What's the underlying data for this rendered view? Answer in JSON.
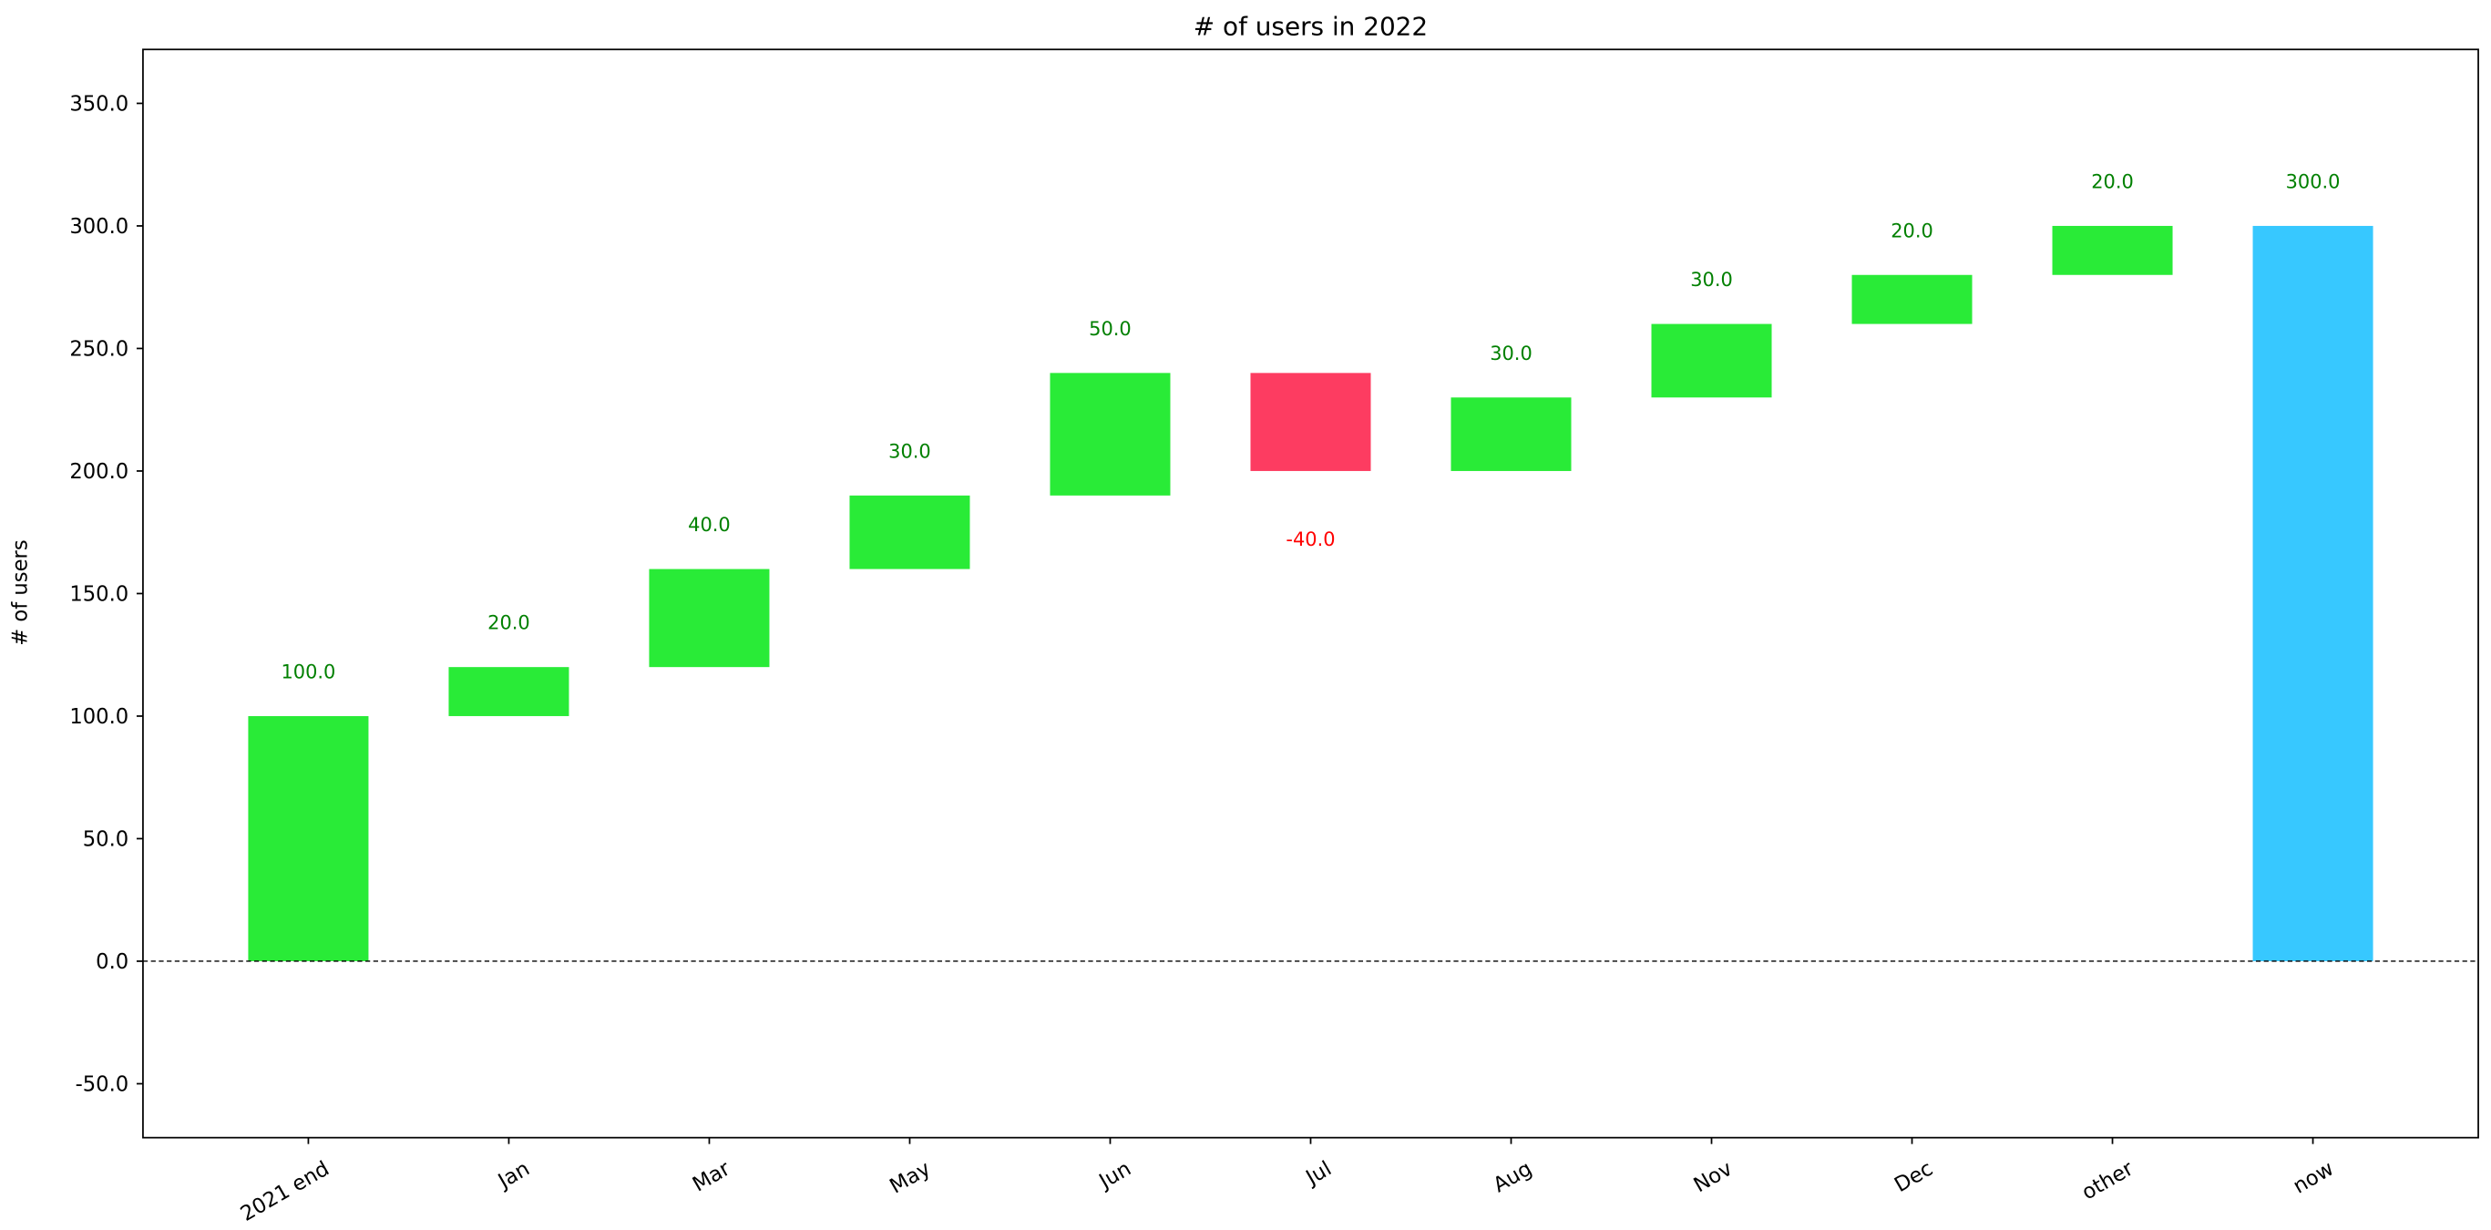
{
  "chart_data": {
    "type": "waterfall",
    "title": "# of users in 2022",
    "xlabel": "",
    "ylabel": "# of users",
    "categories": [
      "2021 end",
      "Jan",
      "Mar",
      "May",
      "Jun",
      "Jul",
      "Aug",
      "Nov",
      "Dec",
      "other",
      "now"
    ],
    "changes": [
      100,
      20,
      40,
      30,
      50,
      -40,
      30,
      30,
      20,
      20,
      300
    ],
    "bar_kind": [
      "delta",
      "delta",
      "delta",
      "delta",
      "delta",
      "delta",
      "delta",
      "delta",
      "delta",
      "delta",
      "total"
    ],
    "data_labels": [
      "100.0",
      "20.0",
      "40.0",
      "30.0",
      "50.0",
      "-40.0",
      "30.0",
      "30.0",
      "20.0",
      "20.0",
      "300.0"
    ],
    "ylim": [
      -72,
      372
    ],
    "yticks": [
      -50,
      0,
      50,
      100,
      150,
      200,
      250,
      300,
      350
    ],
    "ytick_labels": [
      "-50.0",
      "0.0",
      "50.0",
      "100.0",
      "150.0",
      "200.0",
      "250.0",
      "300.0",
      "350.0"
    ],
    "grid": false,
    "zero_line": "dashed",
    "colors": {
      "increase": "#29EB37",
      "decrease": "#FD3C61",
      "total": "#37C8FF",
      "label_increase": "#008000",
      "label_decrease": "#FF0000"
    }
  }
}
